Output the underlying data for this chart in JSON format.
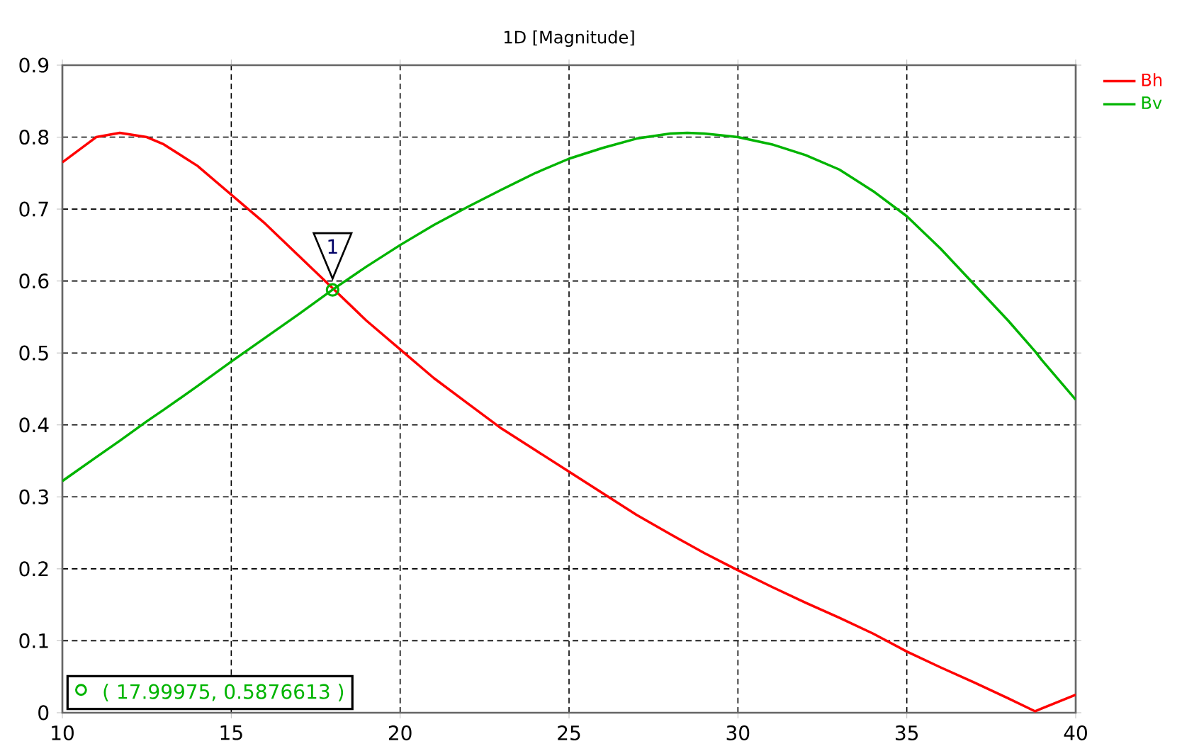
{
  "chart_data": {
    "type": "line",
    "title": "1D [Magnitude]",
    "x": [
      10,
      11,
      11.7,
      12.5,
      13,
      14,
      15,
      16,
      17,
      18,
      19,
      20,
      21,
      22,
      23,
      24,
      25,
      26,
      27,
      28,
      28.5,
      29,
      30,
      31,
      32,
      33,
      34,
      35,
      36,
      37,
      38,
      38.8,
      39,
      40
    ],
    "series": [
      {
        "name": "Bh",
        "color": "#ff0000",
        "values": [
          0.765,
          0.8,
          0.806,
          0.8,
          0.79,
          0.76,
          0.72,
          0.68,
          0.635,
          0.59,
          0.545,
          0.505,
          0.465,
          0.43,
          0.395,
          0.365,
          0.335,
          0.305,
          0.275,
          0.248,
          0.235,
          0.222,
          0.198,
          0.175,
          0.153,
          0.132,
          0.11,
          0.085,
          0.063,
          0.042,
          0.02,
          0.002,
          0.006,
          0.025
        ]
      },
      {
        "name": "Bv",
        "color": "#00b400",
        "values": [
          0.322,
          0.355,
          0.378,
          0.405,
          0.421,
          0.454,
          0.488,
          0.521,
          0.554,
          0.588,
          0.62,
          0.65,
          0.678,
          0.703,
          0.727,
          0.75,
          0.77,
          0.785,
          0.798,
          0.805,
          0.806,
          0.805,
          0.8,
          0.79,
          0.775,
          0.755,
          0.725,
          0.69,
          0.645,
          0.595,
          0.545,
          0.502,
          0.49,
          0.435
        ]
      }
    ],
    "xlim": [
      10,
      40
    ],
    "ylim": [
      0,
      0.9
    ],
    "xticks": [
      10,
      15,
      20,
      25,
      30,
      35,
      40
    ],
    "yticks": [
      0,
      0.1,
      0.2,
      0.3,
      0.4,
      0.5,
      0.6,
      0.7,
      0.8,
      0.9
    ],
    "grid": true,
    "legend": "top right",
    "marker": "none",
    "line_style": "solid",
    "annotations": [
      {
        "text": "1",
        "x": 17.99975,
        "y": 0.5876613
      },
      "( 17.99975, 0.5876613 )"
    ]
  }
}
